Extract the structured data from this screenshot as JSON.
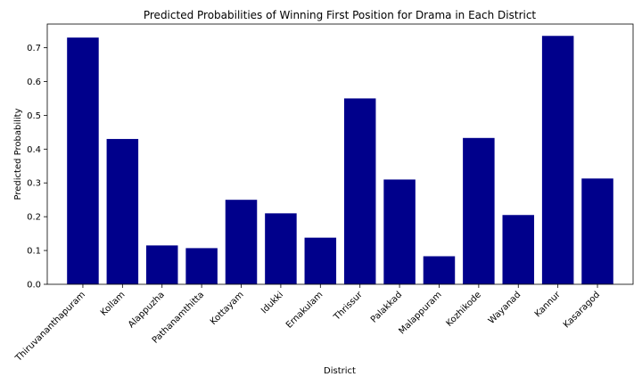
{
  "chart_data": {
    "type": "bar",
    "title": "Predicted Probabilities of Winning First Position for Drama in Each District",
    "xlabel": "District",
    "ylabel": "Predicted Probability",
    "categories": [
      "Thiruvananthapuram",
      "Kollam",
      "Alappuzha",
      "Pathanamthitta",
      "Kottayam",
      "Idukki",
      "Ernakulam",
      "Thrissur",
      "Palakkad",
      "Malappuram",
      "Kozhikode",
      "Wayanad",
      "Kannur",
      "Kasaragod"
    ],
    "values": [
      0.73,
      0.43,
      0.115,
      0.107,
      0.25,
      0.21,
      0.138,
      0.55,
      0.31,
      0.083,
      0.433,
      0.205,
      0.735,
      0.313
    ],
    "ylim": [
      0,
      0.77
    ],
    "yticks": [
      0.0,
      0.1,
      0.2,
      0.3,
      0.4,
      0.5,
      0.6,
      0.7
    ],
    "ytick_labels": [
      "0.0",
      "0.1",
      "0.2",
      "0.3",
      "0.4",
      "0.5",
      "0.6",
      "0.7"
    ],
    "bar_color": "#00008b",
    "grid": false,
    "legend": "none"
  }
}
